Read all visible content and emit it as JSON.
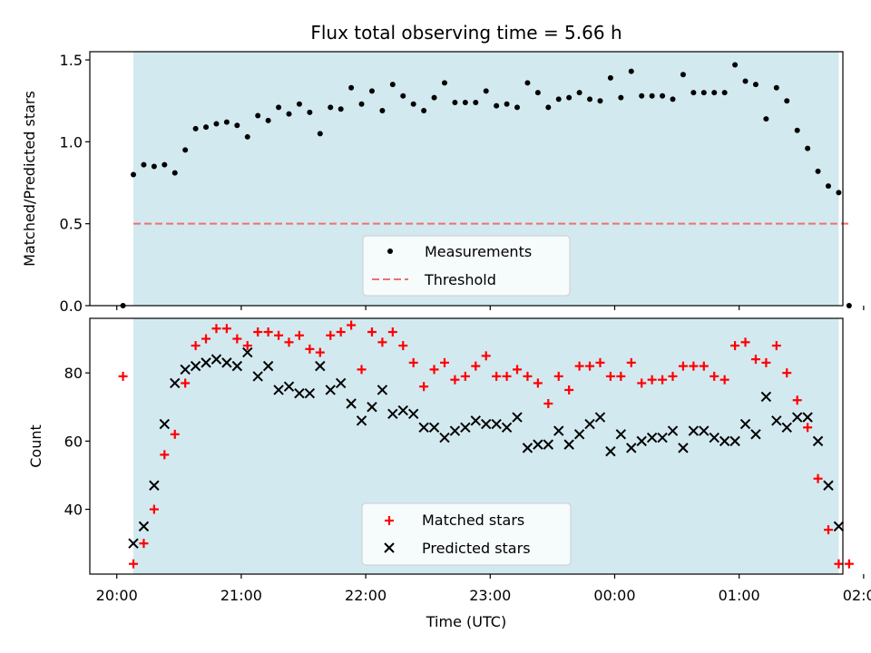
{
  "chart_data": {
    "title": "Flux total observing time = 5.66 h",
    "xlabel": "Time (UTC)",
    "x_unit": "minutes after 20:00 UTC",
    "xlim": [
      -13,
      350
    ],
    "xticks": [
      {
        "value": 0,
        "label": "20:00"
      },
      {
        "value": 60,
        "label": "21:00"
      },
      {
        "value": 120,
        "label": "22:00"
      },
      {
        "value": 180,
        "label": "23:00"
      },
      {
        "value": 240,
        "label": "00:00"
      },
      {
        "value": 300,
        "label": "01:00"
      },
      {
        "value": 360,
        "label": "02:00"
      }
    ],
    "observing_window": {
      "start": 8,
      "end": 348,
      "color": "#d3e9f0"
    },
    "panels": [
      {
        "type": "scatter",
        "ylabel": "Matched/Predicted stars",
        "ylim": [
          0,
          1.55
        ],
        "yticks": [
          0.0,
          0.5,
          1.0,
          1.5
        ],
        "ytick_labels": [
          "0.0",
          "0.5",
          "1.0",
          "1.5"
        ],
        "threshold": {
          "name": "Threshold",
          "value": 0.5,
          "x_range": [
            8,
            353
          ],
          "color": "#f07070"
        },
        "legend": {
          "position": "lower center",
          "entries": [
            "Measurements",
            "Threshold"
          ]
        },
        "series": [
          {
            "name": "Measurements",
            "marker": "dot",
            "color": "#000000",
            "points": [
              [
                3,
                0
              ],
              [
                8,
                0.8
              ],
              [
                13,
                0.86
              ],
              [
                18,
                0.85
              ],
              [
                23,
                0.86
              ],
              [
                28,
                0.81
              ],
              [
                33,
                0.95
              ],
              [
                38,
                1.08
              ],
              [
                43,
                1.09
              ],
              [
                48,
                1.11
              ],
              [
                53,
                1.12
              ],
              [
                58,
                1.1
              ],
              [
                63,
                1.03
              ],
              [
                68,
                1.16
              ],
              [
                73,
                1.13
              ],
              [
                78,
                1.21
              ],
              [
                83,
                1.17
              ],
              [
                88,
                1.23
              ],
              [
                93,
                1.18
              ],
              [
                98,
                1.05
              ],
              [
                103,
                1.21
              ],
              [
                108,
                1.2
              ],
              [
                113,
                1.33
              ],
              [
                118,
                1.23
              ],
              [
                123,
                1.31
              ],
              [
                128,
                1.19
              ],
              [
                133,
                1.35
              ],
              [
                138,
                1.28
              ],
              [
                143,
                1.23
              ],
              [
                148,
                1.19
              ],
              [
                153,
                1.27
              ],
              [
                158,
                1.36
              ],
              [
                163,
                1.24
              ],
              [
                168,
                1.24
              ],
              [
                173,
                1.24
              ],
              [
                178,
                1.31
              ],
              [
                183,
                1.22
              ],
              [
                188,
                1.23
              ],
              [
                193,
                1.21
              ],
              [
                198,
                1.36
              ],
              [
                203,
                1.3
              ],
              [
                208,
                1.21
              ],
              [
                213,
                1.26
              ],
              [
                218,
                1.27
              ],
              [
                223,
                1.3
              ],
              [
                228,
                1.26
              ],
              [
                233,
                1.25
              ],
              [
                238,
                1.39
              ],
              [
                243,
                1.27
              ],
              [
                248,
                1.43
              ],
              [
                253,
                1.28
              ],
              [
                258,
                1.28
              ],
              [
                263,
                1.28
              ],
              [
                268,
                1.26
              ],
              [
                273,
                1.41
              ],
              [
                278,
                1.3
              ],
              [
                283,
                1.3
              ],
              [
                288,
                1.3
              ],
              [
                293,
                1.3
              ],
              [
                298,
                1.47
              ],
              [
                303,
                1.37
              ],
              [
                308,
                1.35
              ],
              [
                313,
                1.14
              ],
              [
                318,
                1.33
              ],
              [
                323,
                1.25
              ],
              [
                328,
                1.07
              ],
              [
                333,
                0.96
              ],
              [
                338,
                0.82
              ],
              [
                343,
                0.73
              ],
              [
                348,
                0.69
              ],
              [
                353,
                0
              ]
            ]
          }
        ]
      },
      {
        "type": "scatter",
        "ylabel": "Count",
        "ylim": [
          21,
          96
        ],
        "yticks": [
          40,
          60,
          80
        ],
        "ytick_labels": [
          "40",
          "60",
          "80"
        ],
        "legend": {
          "position": "lower center",
          "entries": [
            "Matched stars",
            "Predicted stars"
          ]
        },
        "series": [
          {
            "name": "Matched stars",
            "marker": "plus",
            "color": "#ff0000",
            "points": [
              [
                3,
                79
              ],
              [
                8,
                24
              ],
              [
                13,
                30
              ],
              [
                18,
                40
              ],
              [
                23,
                56
              ],
              [
                28,
                62
              ],
              [
                33,
                77
              ],
              [
                38,
                88
              ],
              [
                43,
                90
              ],
              [
                48,
                93
              ],
              [
                53,
                93
              ],
              [
                58,
                90
              ],
              [
                63,
                88
              ],
              [
                68,
                92
              ],
              [
                73,
                92
              ],
              [
                78,
                91
              ],
              [
                83,
                89
              ],
              [
                88,
                91
              ],
              [
                93,
                87
              ],
              [
                98,
                86
              ],
              [
                103,
                91
              ],
              [
                108,
                92
              ],
              [
                113,
                94
              ],
              [
                118,
                81
              ],
              [
                123,
                92
              ],
              [
                128,
                89
              ],
              [
                133,
                92
              ],
              [
                138,
                88
              ],
              [
                143,
                83
              ],
              [
                148,
                76
              ],
              [
                153,
                81
              ],
              [
                158,
                83
              ],
              [
                163,
                78
              ],
              [
                168,
                79
              ],
              [
                173,
                82
              ],
              [
                178,
                85
              ],
              [
                183,
                79
              ],
              [
                188,
                79
              ],
              [
                193,
                81
              ],
              [
                198,
                79
              ],
              [
                203,
                77
              ],
              [
                208,
                71
              ],
              [
                213,
                79
              ],
              [
                218,
                75
              ],
              [
                223,
                82
              ],
              [
                228,
                82
              ],
              [
                233,
                83
              ],
              [
                238,
                79
              ],
              [
                243,
                79
              ],
              [
                248,
                83
              ],
              [
                253,
                77
              ],
              [
                258,
                78
              ],
              [
                263,
                78
              ],
              [
                268,
                79
              ],
              [
                273,
                82
              ],
              [
                278,
                82
              ],
              [
                283,
                82
              ],
              [
                288,
                79
              ],
              [
                293,
                78
              ],
              [
                298,
                88
              ],
              [
                303,
                89
              ],
              [
                308,
                84
              ],
              [
                313,
                83
              ],
              [
                318,
                88
              ],
              [
                323,
                80
              ],
              [
                328,
                72
              ],
              [
                333,
                64
              ],
              [
                338,
                49
              ],
              [
                343,
                34
              ],
              [
                348,
                24
              ],
              [
                353,
                24
              ]
            ]
          },
          {
            "name": "Predicted stars",
            "marker": "x",
            "color": "#000000",
            "points": [
              [
                8,
                30
              ],
              [
                13,
                35
              ],
              [
                18,
                47
              ],
              [
                23,
                65
              ],
              [
                28,
                77
              ],
              [
                33,
                81
              ],
              [
                38,
                82
              ],
              [
                43,
                83
              ],
              [
                48,
                84
              ],
              [
                53,
                83
              ],
              [
                58,
                82
              ],
              [
                63,
                86
              ],
              [
                68,
                79
              ],
              [
                73,
                82
              ],
              [
                78,
                75
              ],
              [
                83,
                76
              ],
              [
                88,
                74
              ],
              [
                93,
                74
              ],
              [
                98,
                82
              ],
              [
                103,
                75
              ],
              [
                108,
                77
              ],
              [
                113,
                71
              ],
              [
                118,
                66
              ],
              [
                123,
                70
              ],
              [
                128,
                75
              ],
              [
                133,
                68
              ],
              [
                138,
                69
              ],
              [
                143,
                68
              ],
              [
                148,
                64
              ],
              [
                153,
                64
              ],
              [
                158,
                61
              ],
              [
                163,
                63
              ],
              [
                168,
                64
              ],
              [
                173,
                66
              ],
              [
                178,
                65
              ],
              [
                183,
                65
              ],
              [
                188,
                64
              ],
              [
                193,
                67
              ],
              [
                198,
                58
              ],
              [
                203,
                59
              ],
              [
                208,
                59
              ],
              [
                213,
                63
              ],
              [
                218,
                59
              ],
              [
                223,
                62
              ],
              [
                228,
                65
              ],
              [
                233,
                67
              ],
              [
                238,
                57
              ],
              [
                243,
                62
              ],
              [
                248,
                58
              ],
              [
                253,
                60
              ],
              [
                258,
                61
              ],
              [
                263,
                61
              ],
              [
                268,
                63
              ],
              [
                273,
                58
              ],
              [
                278,
                63
              ],
              [
                283,
                63
              ],
              [
                288,
                61
              ],
              [
                293,
                60
              ],
              [
                298,
                60
              ],
              [
                303,
                65
              ],
              [
                308,
                62
              ],
              [
                313,
                73
              ],
              [
                318,
                66
              ],
              [
                323,
                64
              ],
              [
                328,
                67
              ],
              [
                333,
                67
              ],
              [
                338,
                60
              ],
              [
                343,
                47
              ],
              [
                348,
                35
              ]
            ]
          }
        ]
      }
    ]
  }
}
